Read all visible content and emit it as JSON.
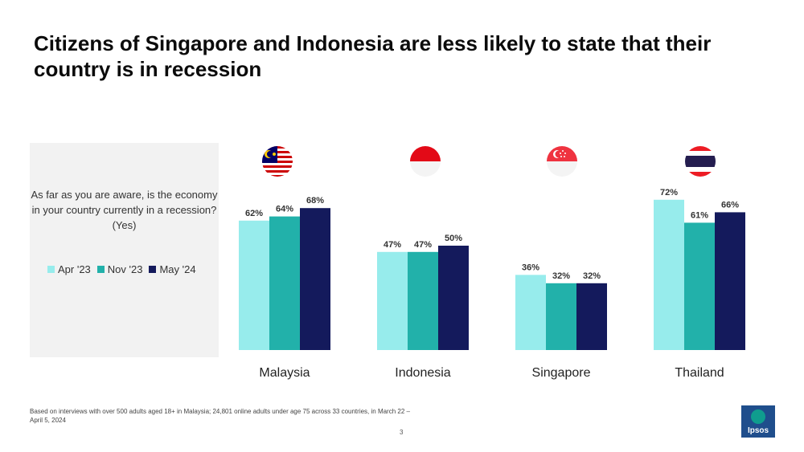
{
  "title": "Citizens of Singapore and Indonesia are less likely to state that their country is in recession",
  "question": "As far as you are aware, is the economy in your country currently in a recession? (Yes)",
  "footnote": "Based on interviews with over 500 adults aged 18+ in Malaysia; 24,801 online adults under age 75 across 33 countries, in March 22 – April 5, 2024",
  "page_number": "3",
  "logo_text": "Ipsos",
  "colors": {
    "apr23": "#97ecec",
    "nov23": "#22b1aa",
    "may24": "#141a5c"
  },
  "chart_data": {
    "type": "bar",
    "categories": [
      "Malaysia",
      "Indonesia",
      "Singapore",
      "Thailand"
    ],
    "series": [
      {
        "name": "Apr '23",
        "values": [
          62,
          47,
          36,
          72
        ]
      },
      {
        "name": "Nov '23",
        "values": [
          64,
          47,
          32,
          61
        ]
      },
      {
        "name": "May '24",
        "values": [
          68,
          50,
          32,
          66
        ]
      }
    ],
    "value_suffix": "%",
    "ylim": [
      0,
      100
    ],
    "legend_position": "left",
    "grid": false
  }
}
